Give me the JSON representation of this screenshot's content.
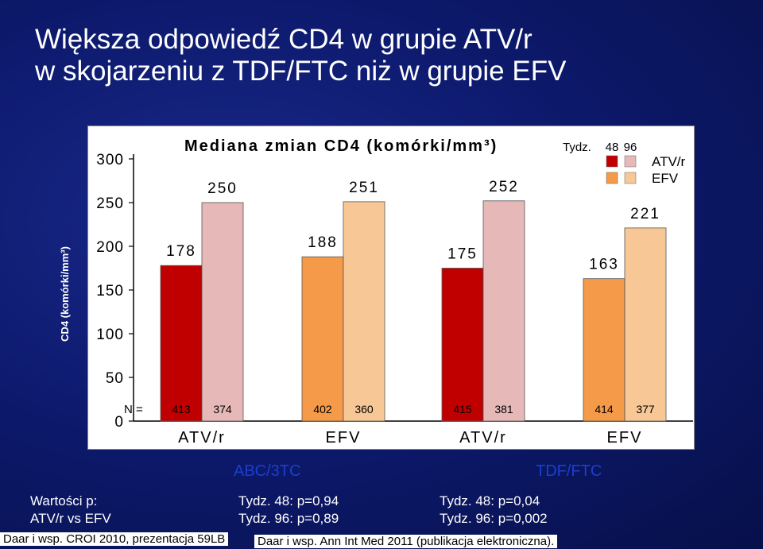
{
  "title_line1": "Większa odpowiedź CD4 w grupie ATV/r",
  "title_line2": "w skojarzeniu z TDF/FTC niż w grupie EFV",
  "chart_data": {
    "type": "bar",
    "title": "Mediana zmian CD4 (komórki/mm³)",
    "ylabel": "CD4 (komórki/mm³)",
    "ylim": [
      0,
      300
    ],
    "yticks": [
      0,
      50,
      100,
      150,
      200,
      250,
      300
    ],
    "n_label": "N =",
    "legend": {
      "weeks_label": "Tydz.",
      "week_columns": [
        "48",
        "96"
      ],
      "rows": [
        "ATV/r",
        "EFV"
      ]
    },
    "categories": [
      "ATV/r",
      "EFV",
      "ATV/r",
      "EFV"
    ],
    "groups": [
      "ABC/3TC",
      "TDF/FTC"
    ],
    "series": [
      {
        "name": "Tydz. 48",
        "values": [
          178,
          188,
          175,
          163
        ],
        "n": [
          413,
          402,
          415,
          414
        ]
      },
      {
        "name": "Tydz. 96",
        "values": [
          250,
          251,
          252,
          221
        ],
        "n": [
          374,
          360,
          381,
          377
        ]
      }
    ],
    "colors": {
      "atv48": "#c00000",
      "atv96": "#e6b8b8",
      "efv48": "#f59a48",
      "efv96": "#f8c796"
    }
  },
  "stats": {
    "label_line1": "Wartości p:",
    "label_line2": "ATV/r vs EFV",
    "abc_line1": "Tydz. 48: p=0,94",
    "abc_line2": "Tydz. 96: p=0,89",
    "tdf_line1": "Tydz. 48: p=0,04",
    "tdf_line2": "Tydz. 96: p=0,002"
  },
  "sources": {
    "left": "Daar i wsp. CROI 2010, prezentacja 59LB",
    "right": "Daar i wsp. Ann Int Med 2011 (publikacja elektroniczna)."
  }
}
